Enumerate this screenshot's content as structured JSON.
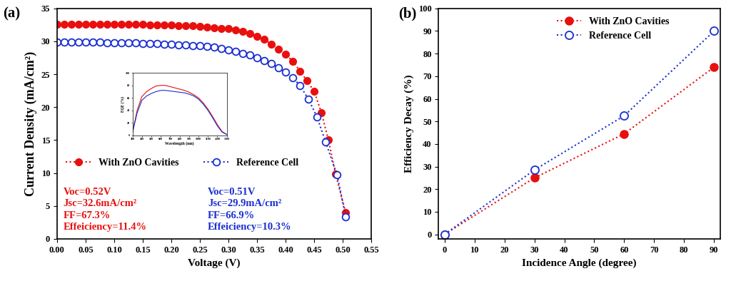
{
  "chart_data": [
    {
      "type": "line",
      "panel_label": "(a)",
      "x_label": "Voltage (V)",
      "y_label": "Current Density (mA/cm²)",
      "xlim": [
        0,
        0.55
      ],
      "xticks": [
        {
          "value": 0,
          "label": "0.00"
        },
        {
          "value": 0.05,
          "label": "0.05"
        },
        {
          "value": 0.1,
          "label": "0.10"
        },
        {
          "value": 0.15,
          "label": "0.15"
        },
        {
          "value": 0.2,
          "label": "0.20"
        },
        {
          "value": 0.25,
          "label": "0.25"
        },
        {
          "value": 0.3,
          "label": "0.30"
        },
        {
          "value": 0.35,
          "label": "0.35"
        },
        {
          "value": 0.4,
          "label": "0.40"
        },
        {
          "value": 0.45,
          "label": "0.45"
        },
        {
          "value": 0.5,
          "label": "0.50"
        },
        {
          "value": 0.55,
          "label": "0.55"
        }
      ],
      "ylim": [
        0,
        35
      ],
      "yticks": [
        0,
        5,
        10,
        15,
        20,
        25,
        30,
        35
      ],
      "legend": "lower left",
      "series": [
        {
          "name": "With ZnO Cavities",
          "color": "#e8100e",
          "marker": "filled_circle",
          "line_style": "dotted",
          "x": [
            0,
            0.0125,
            0.025,
            0.0375,
            0.05,
            0.0625,
            0.075,
            0.0875,
            0.1,
            0.1125,
            0.125,
            0.1375,
            0.15,
            0.1625,
            0.175,
            0.1875,
            0.2,
            0.2125,
            0.225,
            0.2375,
            0.25,
            0.2625,
            0.275,
            0.2875,
            0.3,
            0.3125,
            0.325,
            0.3375,
            0.35,
            0.3625,
            0.375,
            0.3875,
            0.4,
            0.4125,
            0.425,
            0.4375,
            0.45,
            0.4625,
            0.475,
            0.4875,
            0.505
          ],
          "values": [
            32.6,
            32.6,
            32.6,
            32.6,
            32.6,
            32.6,
            32.6,
            32.6,
            32.6,
            32.6,
            32.55,
            32.55,
            32.55,
            32.5,
            32.5,
            32.5,
            32.45,
            32.4,
            32.4,
            32.35,
            32.3,
            32.2,
            32.1,
            32.0,
            31.9,
            31.7,
            31.5,
            31.2,
            30.8,
            30.3,
            29.6,
            28.8,
            28.0,
            27.0,
            25.5,
            24.0,
            22.4,
            19.2,
            15.0,
            9.8,
            4.0
          ]
        },
        {
          "name": "Reference Cell",
          "color": "#1a2fd0",
          "marker": "open_circle",
          "line_style": "dotted",
          "x": [
            0,
            0.0125,
            0.025,
            0.0375,
            0.05,
            0.0625,
            0.075,
            0.0875,
            0.1,
            0.1125,
            0.125,
            0.1375,
            0.15,
            0.1625,
            0.175,
            0.1875,
            0.2,
            0.2125,
            0.225,
            0.2375,
            0.25,
            0.2625,
            0.275,
            0.2875,
            0.3,
            0.3125,
            0.325,
            0.3375,
            0.35,
            0.3625,
            0.375,
            0.3875,
            0.4,
            0.4125,
            0.425,
            0.44,
            0.455,
            0.47,
            0.49,
            0.505
          ],
          "values": [
            29.9,
            29.9,
            29.9,
            29.9,
            29.85,
            29.85,
            29.85,
            29.8,
            29.8,
            29.8,
            29.75,
            29.75,
            29.7,
            29.7,
            29.65,
            29.6,
            29.55,
            29.5,
            29.45,
            29.4,
            29.3,
            29.2,
            29.1,
            28.9,
            28.7,
            28.5,
            28.2,
            27.9,
            27.5,
            27.1,
            26.6,
            26.0,
            25.3,
            24.5,
            23.3,
            21.2,
            18.5,
            14.7,
            9.7,
            3.4
          ]
        }
      ],
      "annotations": [
        {
          "text": "Voc=0.52V\nJsc=32.6mA/cm²\nFF=67.3%\nEffeiciency=11.4%",
          "color": "#e8100e"
        },
        {
          "text": "Voc=0.51V\nJsc=29.9mA/cm²\nFF=66.9%\nEffeiciency=10.3%",
          "color": "#1a2fd0"
        }
      ]
    },
    {
      "type": "line",
      "x_label": "Wavelength (nm)",
      "y_label": "EQE (%)",
      "xlim": [
        300,
        1300
      ],
      "xticks": [
        300,
        400,
        500,
        600,
        700,
        800,
        900,
        1000,
        1100,
        1200,
        1300
      ],
      "ylim": [
        0,
        100
      ],
      "yticks": [
        0,
        20,
        40,
        60,
        80,
        100
      ],
      "series": [
        {
          "color": "#e8100e",
          "line_style": "solid",
          "x": [
            300,
            350,
            400,
            450,
            500,
            550,
            600,
            650,
            700,
            750,
            800,
            850,
            900,
            950,
            1000,
            1050,
            1100,
            1150,
            1200,
            1250,
            1300
          ],
          "values": [
            5,
            40,
            62,
            70,
            75,
            79,
            80,
            80,
            78,
            76,
            74,
            72,
            69,
            65,
            60,
            52,
            42,
            30,
            17,
            6,
            1
          ]
        },
        {
          "color": "#1a2fd0",
          "line_style": "solid",
          "x": [
            300,
            350,
            400,
            450,
            500,
            550,
            600,
            650,
            700,
            750,
            800,
            850,
            900,
            950,
            1000,
            1050,
            1100,
            1150,
            1200,
            1250,
            1300
          ],
          "values": [
            4,
            36,
            56,
            63,
            67,
            70,
            72,
            72,
            71,
            70,
            69,
            68,
            66,
            63,
            58,
            50,
            40,
            28,
            15,
            5,
            1
          ]
        }
      ]
    },
    {
      "type": "line",
      "panel_label": "(b)",
      "x_label": "Incidence Angle (degree)",
      "y_label": "Efficiency Decay (%)",
      "xlim": [
        -2,
        92
      ],
      "xticks": [
        0,
        10,
        20,
        30,
        40,
        50,
        60,
        70,
        80,
        90
      ],
      "ylim": [
        -2,
        100
      ],
      "yticks": [
        0,
        10,
        20,
        30,
        40,
        50,
        60,
        70,
        80,
        90,
        100
      ],
      "legend": "upper center",
      "series": [
        {
          "name": "With ZnO Cavities",
          "color": "#e8100e",
          "marker": "filled_circle",
          "line_style": "dotted",
          "x": [
            0,
            30,
            60,
            90
          ],
          "values": [
            0,
            25,
            44.5,
            74
          ]
        },
        {
          "name": "Reference Cell",
          "color": "#1a2fd0",
          "marker": "open_circle",
          "line_style": "dotted",
          "x": [
            0,
            30,
            60,
            90
          ],
          "values": [
            0,
            28.5,
            52.5,
            90
          ]
        }
      ]
    }
  ]
}
